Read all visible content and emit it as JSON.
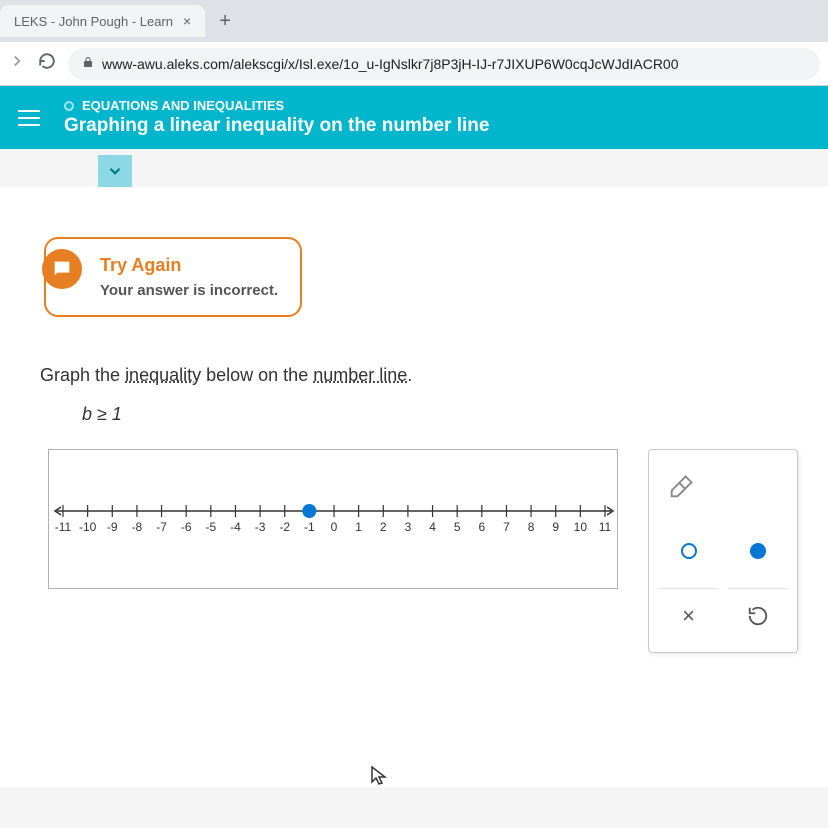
{
  "browser": {
    "tab_title": "LEKS - John Pough - Learn",
    "url": "www-awu.aleks.com/alekscgi/x/Isl.exe/1o_u-IgNslkr7j8P3jH-IJ-r7JIXUP6W0cqJcWJdIACR00"
  },
  "header": {
    "category": "EQUATIONS AND INEQUALITIES",
    "topic": "Graphing a linear inequality on the number line",
    "bg_color": "#00b5cc"
  },
  "feedback": {
    "title": "Try Again",
    "message": "Your answer is incorrect.",
    "border_color": "#e67e22"
  },
  "problem": {
    "instruction_pre": "Graph the ",
    "vocab1": "inequality",
    "instruction_mid": " below on the ",
    "vocab2": "number line",
    "instruction_post": ".",
    "expression": "b ≥ 1"
  },
  "numberline": {
    "min": -11,
    "max": 11,
    "tick_labels": [
      "-11",
      "-10",
      "-9",
      "-8",
      "-7",
      "-6",
      "-5",
      "-4",
      "-3",
      "-2",
      "-1",
      "0",
      "1",
      "2",
      "3",
      "4",
      "5",
      "6",
      "7",
      "8",
      "9",
      "10",
      "11"
    ],
    "point_value": -1,
    "point_filled": true,
    "line_color": "#0077d4",
    "tick_color": "#333333"
  },
  "tools": {
    "clear_symbol": "×",
    "undo_symbol": "↺"
  }
}
